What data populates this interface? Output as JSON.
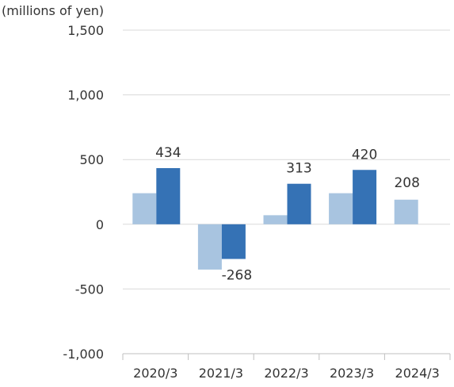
{
  "chart_data": {
    "type": "bar",
    "unit_label": "(millions of yen)",
    "categories": [
      "2020/3",
      "2021/3",
      "2022/3",
      "2023/3",
      "2024/3"
    ],
    "series": [
      {
        "values": [
          240,
          -350,
          70,
          240,
          190
        ]
      },
      {
        "values": [
          434,
          -268,
          313,
          420,
          null
        ]
      }
    ],
    "data_labels": [
      {
        "category": "2020/3",
        "text": "434"
      },
      {
        "category": "2021/3",
        "text": "-268"
      },
      {
        "category": "2022/3",
        "text": "313"
      },
      {
        "category": "2023/3",
        "text": "420"
      },
      {
        "category": "2024/3",
        "text": "208"
      }
    ],
    "y_ticks": [
      1500,
      1000,
      500,
      0,
      -500,
      -1000
    ],
    "y_tick_labels": [
      "1,500",
      "1,000",
      "500",
      "0",
      "-500",
      "-1,000"
    ],
    "ylim": [
      -1000,
      1500
    ],
    "grid": true,
    "colors": {
      "light": "#a8c4e0",
      "dark": "#3572b5",
      "grid": "#d9d9d9",
      "text": "#333333"
    }
  }
}
